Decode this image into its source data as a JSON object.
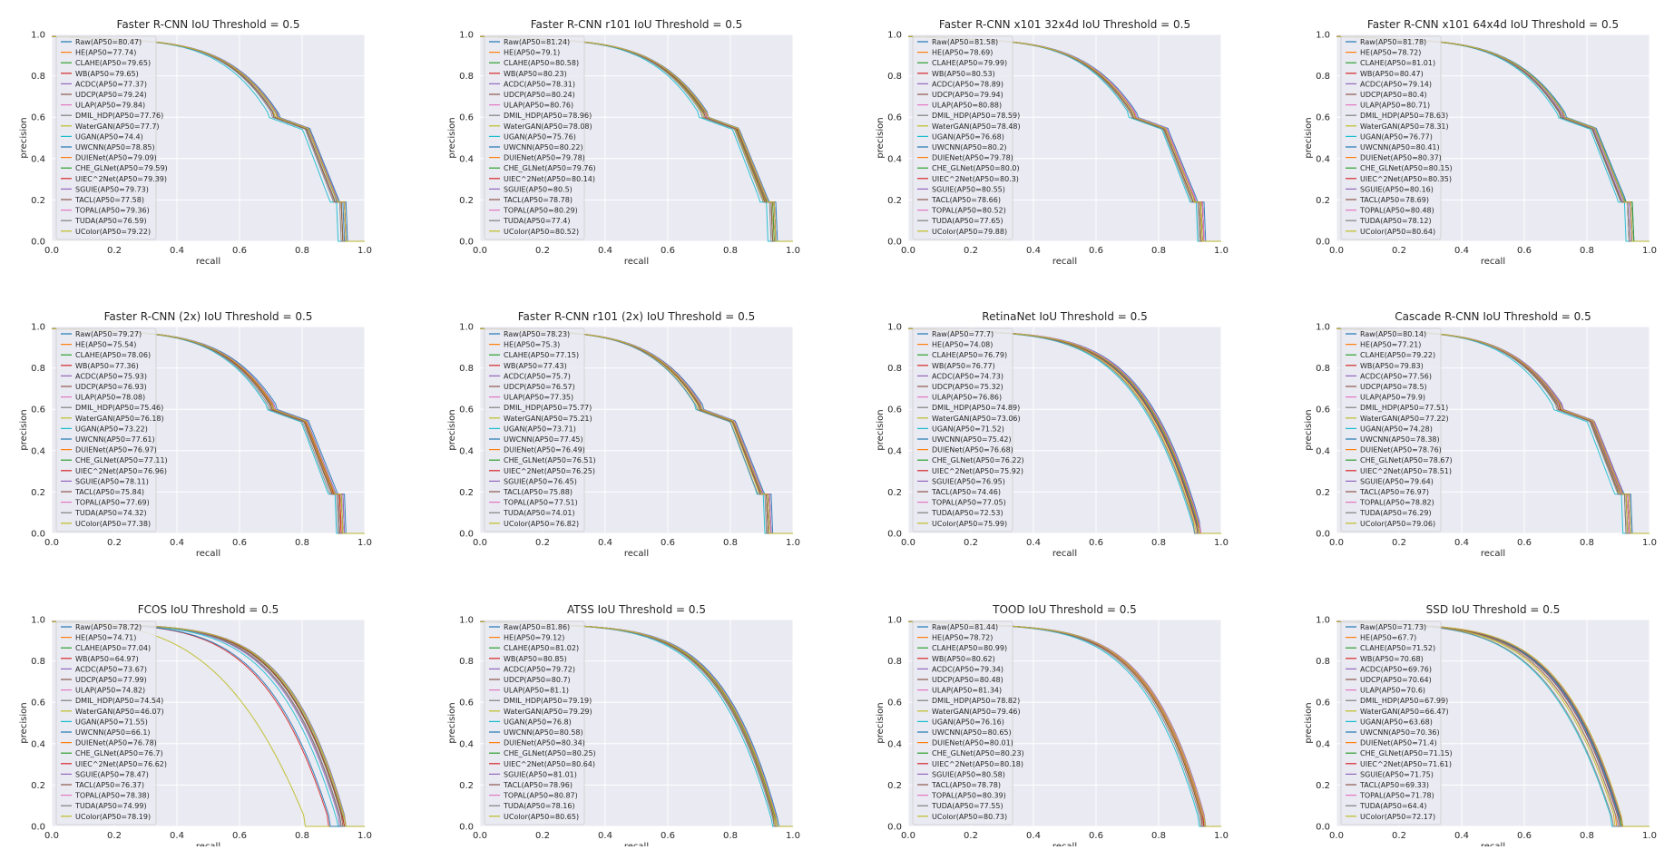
{
  "series_colors": [
    "#1f77b4",
    "#ff7f0e",
    "#2ca02c",
    "#d62728",
    "#9467bd",
    "#8c564b",
    "#e377c2",
    "#7f7f7f",
    "#bcbd22",
    "#17becf",
    "#1f77b4",
    "#ff7f0e",
    "#2ca02c",
    "#d62728",
    "#9467bd",
    "#8c564b",
    "#e377c2",
    "#7f7f7f",
    "#bcbd22"
  ],
  "chart_data": [
    {
      "type": "line",
      "title": "Faster R-CNN IoU Threshold = 0.5",
      "xlabel": "recall",
      "ylabel": "precision",
      "xlim": [
        0,
        1
      ],
      "ylim": [
        0,
        1
      ],
      "xticks": [
        "0.0",
        "0.2",
        "0.4",
        "0.6",
        "0.8",
        "1.0"
      ],
      "yticks": [
        "0.0",
        "0.2",
        "0.4",
        "0.6",
        "0.8",
        "1.0"
      ],
      "legend": [
        "Raw(AP50=80.47)",
        "HE(AP50=77.74)",
        "CLAHE(AP50=79.65)",
        "WB(AP50=79.65)",
        "ACDC(AP50=77.37)",
        "UDCP(AP50=79.24)",
        "ULAP(AP50=79.84)",
        "DMIL_HDP(AP50=77.76)",
        "WaterGAN(AP50=77.7)",
        "UGAN(AP50=74.4)",
        "UWCNN(AP50=78.85)",
        "DUIENet(AP50=79.09)",
        "CHE_GLNet(AP50=79.59)",
        "UIEC^2Net(AP50=79.39)",
        "SGUIE(AP50=79.73)",
        "TACL(AP50=77.58)",
        "TOPAL(AP50=79.36)",
        "TUDA(AP50=76.59)",
        "UColor(AP50=79.22)"
      ],
      "curve_shape": "step"
    },
    {
      "type": "line",
      "title": "Faster R-CNN r101 IoU Threshold = 0.5",
      "xlabel": "recall",
      "ylabel": "precision",
      "xlim": [
        0,
        1
      ],
      "ylim": [
        0,
        1
      ],
      "xticks": [
        "0.0",
        "0.2",
        "0.4",
        "0.6",
        "0.8",
        "1.0"
      ],
      "yticks": [
        "0.0",
        "0.2",
        "0.4",
        "0.6",
        "0.8",
        "1.0"
      ],
      "legend": [
        "Raw(AP50=81.24)",
        "HE(AP50=79.1)",
        "CLAHE(AP50=80.58)",
        "WB(AP50=80.23)",
        "ACDC(AP50=78.31)",
        "UDCP(AP50=80.24)",
        "ULAP(AP50=80.76)",
        "DMIL_HDP(AP50=78.96)",
        "WaterGAN(AP50=78.08)",
        "UGAN(AP50=75.76)",
        "UWCNN(AP50=80.22)",
        "DUIENet(AP50=79.78)",
        "CHE_GLNet(AP50=79.76)",
        "UIEC^2Net(AP50=80.14)",
        "SGUIE(AP50=80.5)",
        "TACL(AP50=78.78)",
        "TOPAL(AP50=80.29)",
        "TUDA(AP50=77.4)",
        "UColor(AP50=80.52)"
      ],
      "curve_shape": "step"
    },
    {
      "type": "line",
      "title": "Faster R-CNN x101 32x4d IoU Threshold = 0.5",
      "xlabel": "recall",
      "ylabel": "precision",
      "xlim": [
        0,
        1
      ],
      "ylim": [
        0,
        1
      ],
      "xticks": [
        "0.0",
        "0.2",
        "0.4",
        "0.6",
        "0.8",
        "1.0"
      ],
      "yticks": [
        "0.0",
        "0.2",
        "0.4",
        "0.6",
        "0.8",
        "1.0"
      ],
      "legend": [
        "Raw(AP50=81.58)",
        "HE(AP50=78.69)",
        "CLAHE(AP50=79.99)",
        "WB(AP50=80.53)",
        "ACDC(AP50=78.89)",
        "UDCP(AP50=79.94)",
        "ULAP(AP50=80.88)",
        "DMIL_HDP(AP50=78.59)",
        "WaterGAN(AP50=78.48)",
        "UGAN(AP50=76.68)",
        "UWCNN(AP50=80.2)",
        "DUIENet(AP50=79.78)",
        "CHE_GLNet(AP50=80.0)",
        "UIEC^2Net(AP50=80.3)",
        "SGUIE(AP50=80.55)",
        "TACL(AP50=78.66)",
        "TOPAL(AP50=80.52)",
        "TUDA(AP50=77.65)",
        "UColor(AP50=79.88)"
      ],
      "curve_shape": "step"
    },
    {
      "type": "line",
      "title": "Faster R-CNN x101 64x4d IoU Threshold = 0.5",
      "xlabel": "recall",
      "ylabel": "precision",
      "xlim": [
        0,
        1
      ],
      "ylim": [
        0,
        1
      ],
      "xticks": [
        "0.0",
        "0.2",
        "0.4",
        "0.6",
        "0.8",
        "1.0"
      ],
      "yticks": [
        "0.0",
        "0.2",
        "0.4",
        "0.6",
        "0.8",
        "1.0"
      ],
      "legend": [
        "Raw(AP50=81.78)",
        "HE(AP50=78.72)",
        "CLAHE(AP50=81.01)",
        "WB(AP50=80.47)",
        "ACDC(AP50=79.14)",
        "UDCP(AP50=80.4)",
        "ULAP(AP50=80.71)",
        "DMIL_HDP(AP50=78.63)",
        "WaterGAN(AP50=78.31)",
        "UGAN(AP50=76.77)",
        "UWCNN(AP50=80.41)",
        "DUIENet(AP50=80.37)",
        "CHE_GLNet(AP50=80.15)",
        "UIEC^2Net(AP50=80.35)",
        "SGUIE(AP50=80.16)",
        "TACL(AP50=78.69)",
        "TOPAL(AP50=80.48)",
        "TUDA(AP50=78.12)",
        "UColor(AP50=80.64)"
      ],
      "curve_shape": "step"
    },
    {
      "type": "line",
      "title": "Faster R-CNN (2x) IoU Threshold = 0.5",
      "xlabel": "recall",
      "ylabel": "precision",
      "xlim": [
        0,
        1
      ],
      "ylim": [
        0,
        1
      ],
      "xticks": [
        "0.0",
        "0.2",
        "0.4",
        "0.6",
        "0.8",
        "1.0"
      ],
      "yticks": [
        "0.0",
        "0.2",
        "0.4",
        "0.6",
        "0.8",
        "1.0"
      ],
      "legend": [
        "Raw(AP50=79.27)",
        "HE(AP50=75.54)",
        "CLAHE(AP50=78.06)",
        "WB(AP50=77.36)",
        "ACDC(AP50=75.93)",
        "UDCP(AP50=76.93)",
        "ULAP(AP50=78.08)",
        "DMIL_HDP(AP50=75.46)",
        "WaterGAN(AP50=76.18)",
        "UGAN(AP50=73.22)",
        "UWCNN(AP50=77.61)",
        "DUIENet(AP50=76.97)",
        "CHE_GLNet(AP50=77.11)",
        "UIEC^2Net(AP50=76.96)",
        "SGUIE(AP50=78.11)",
        "TACL(AP50=75.84)",
        "TOPAL(AP50=77.69)",
        "TUDA(AP50=74.32)",
        "UColor(AP50=77.38)"
      ],
      "curve_shape": "step"
    },
    {
      "type": "line",
      "title": "Faster R-CNN r101 (2x) IoU Threshold = 0.5",
      "xlabel": "recall",
      "ylabel": "precision",
      "xlim": [
        0,
        1
      ],
      "ylim": [
        0,
        1
      ],
      "xticks": [
        "0.0",
        "0.2",
        "0.4",
        "0.6",
        "0.8",
        "1.0"
      ],
      "yticks": [
        "0.0",
        "0.2",
        "0.4",
        "0.6",
        "0.8",
        "1.0"
      ],
      "legend": [
        "Raw(AP50=78.23)",
        "HE(AP50=75.3)",
        "CLAHE(AP50=77.15)",
        "WB(AP50=77.43)",
        "ACDC(AP50=75.7)",
        "UDCP(AP50=76.57)",
        "ULAP(AP50=77.35)",
        "DMIL_HDP(AP50=75.77)",
        "WaterGAN(AP50=75.21)",
        "UGAN(AP50=73.71)",
        "UWCNN(AP50=77.45)",
        "DUIENet(AP50=76.49)",
        "CHE_GLNet(AP50=76.51)",
        "UIEC^2Net(AP50=76.25)",
        "SGUIE(AP50=76.45)",
        "TACL(AP50=75.88)",
        "TOPAL(AP50=77.51)",
        "TUDA(AP50=74.01)",
        "UColor(AP50=76.82)"
      ],
      "curve_shape": "step"
    },
    {
      "type": "line",
      "title": "RetinaNet IoU Threshold = 0.5",
      "xlabel": "recall",
      "ylabel": "precision",
      "xlim": [
        0,
        1
      ],
      "ylim": [
        0,
        1
      ],
      "xticks": [
        "0.0",
        "0.2",
        "0.4",
        "0.6",
        "0.8",
        "1.0"
      ],
      "yticks": [
        "0.0",
        "0.2",
        "0.4",
        "0.6",
        "0.8",
        "1.0"
      ],
      "legend": [
        "Raw(AP50=77.7)",
        "HE(AP50=74.08)",
        "CLAHE(AP50=76.79)",
        "WB(AP50=76.77)",
        "ACDC(AP50=74.73)",
        "UDCP(AP50=75.32)",
        "ULAP(AP50=76.86)",
        "DMIL_HDP(AP50=74.89)",
        "WaterGAN(AP50=73.06)",
        "UGAN(AP50=71.52)",
        "UWCNN(AP50=75.42)",
        "DUIENet(AP50=76.68)",
        "CHE_GLNet(AP50=76.22)",
        "UIEC^2Net(AP50=75.92)",
        "SGUIE(AP50=76.95)",
        "TACL(AP50=74.46)",
        "TOPAL(AP50=77.05)",
        "TUDA(AP50=72.53)",
        "UColor(AP50=75.99)"
      ],
      "curve_shape": "smooth"
    },
    {
      "type": "line",
      "title": "Cascade R-CNN IoU Threshold = 0.5",
      "xlabel": "recall",
      "ylabel": "precision",
      "xlim": [
        0,
        1
      ],
      "ylim": [
        0,
        1
      ],
      "xticks": [
        "0.0",
        "0.2",
        "0.4",
        "0.6",
        "0.8",
        "1.0"
      ],
      "yticks": [
        "0.0",
        "0.2",
        "0.4",
        "0.6",
        "0.8",
        "1.0"
      ],
      "legend": [
        "Raw(AP50=80.14)",
        "HE(AP50=77.21)",
        "CLAHE(AP50=79.22)",
        "WB(AP50=79.83)",
        "ACDC(AP50=77.56)",
        "UDCP(AP50=78.5)",
        "ULAP(AP50=79.9)",
        "DMIL_HDP(AP50=77.51)",
        "WaterGAN(AP50=77.22)",
        "UGAN(AP50=74.28)",
        "UWCNN(AP50=78.38)",
        "DUIENet(AP50=78.76)",
        "CHE_GLNet(AP50=78.67)",
        "UIEC^2Net(AP50=78.51)",
        "SGUIE(AP50=79.64)",
        "TACL(AP50=76.97)",
        "TOPAL(AP50=78.82)",
        "TUDA(AP50=76.29)",
        "UColor(AP50=79.06)"
      ],
      "curve_shape": "step"
    },
    {
      "type": "line",
      "title": "FCOS IoU Threshold = 0.5",
      "xlabel": "recall",
      "ylabel": "precision",
      "xlim": [
        0,
        1
      ],
      "ylim": [
        0,
        1
      ],
      "xticks": [
        "0.0",
        "0.2",
        "0.4",
        "0.6",
        "0.8",
        "1.0"
      ],
      "yticks": [
        "0.0",
        "0.2",
        "0.4",
        "0.6",
        "0.8",
        "1.0"
      ],
      "legend": [
        "Raw(AP50=78.72)",
        "HE(AP50=74.71)",
        "CLAHE(AP50=77.04)",
        "WB(AP50=64.97)",
        "ACDC(AP50=73.67)",
        "UDCP(AP50=77.99)",
        "ULAP(AP50=74.82)",
        "DMIL_HDP(AP50=74.54)",
        "WaterGAN(AP50=46.07)",
        "UGAN(AP50=71.55)",
        "UWCNN(AP50=66.1)",
        "DUIENet(AP50=76.78)",
        "CHE_GLNet(AP50=76.7)",
        "UIEC^2Net(AP50=76.62)",
        "SGUIE(AP50=78.47)",
        "TACL(AP50=76.37)",
        "TOPAL(AP50=78.38)",
        "TUDA(AP50=74.99)",
        "UColor(AP50=78.19)"
      ],
      "curve_shape": "smooth"
    },
    {
      "type": "line",
      "title": "ATSS IoU Threshold = 0.5",
      "xlabel": "recall",
      "ylabel": "precision",
      "xlim": [
        0,
        1
      ],
      "ylim": [
        0,
        1
      ],
      "xticks": [
        "0.0",
        "0.2",
        "0.4",
        "0.6",
        "0.8",
        "1.0"
      ],
      "yticks": [
        "0.0",
        "0.2",
        "0.4",
        "0.6",
        "0.8",
        "1.0"
      ],
      "legend": [
        "Raw(AP50=81.86)",
        "HE(AP50=79.12)",
        "CLAHE(AP50=81.02)",
        "WB(AP50=80.85)",
        "ACDC(AP50=79.72)",
        "UDCP(AP50=80.7)",
        "ULAP(AP50=81.1)",
        "DMIL_HDP(AP50=79.19)",
        "WaterGAN(AP50=79.29)",
        "UGAN(AP50=76.8)",
        "UWCNN(AP50=80.58)",
        "DUIENet(AP50=80.34)",
        "CHE_GLNet(AP50=80.25)",
        "UIEC^2Net(AP50=80.64)",
        "SGUIE(AP50=81.01)",
        "TACL(AP50=78.96)",
        "TOPAL(AP50=80.87)",
        "TUDA(AP50=78.16)",
        "UColor(AP50=80.65)"
      ],
      "curve_shape": "smooth"
    },
    {
      "type": "line",
      "title": "TOOD IoU Threshold = 0.5",
      "xlabel": "recall",
      "ylabel": "precision",
      "xlim": [
        0,
        1
      ],
      "ylim": [
        0,
        1
      ],
      "xticks": [
        "0.0",
        "0.2",
        "0.4",
        "0.6",
        "0.8",
        "1.0"
      ],
      "yticks": [
        "0.0",
        "0.2",
        "0.4",
        "0.6",
        "0.8",
        "1.0"
      ],
      "legend": [
        "Raw(AP50=81.44)",
        "HE(AP50=78.72)",
        "CLAHE(AP50=80.99)",
        "WB(AP50=80.62)",
        "ACDC(AP50=79.34)",
        "UDCP(AP50=80.48)",
        "ULAP(AP50=81.34)",
        "DMIL_HDP(AP50=78.82)",
        "WaterGAN(AP50=79.46)",
        "UGAN(AP50=76.16)",
        "UWCNN(AP50=80.65)",
        "DUIENet(AP50=80.01)",
        "CHE_GLNet(AP50=80.23)",
        "UIEC^2Net(AP50=80.18)",
        "SGUIE(AP50=80.58)",
        "TACL(AP50=78.78)",
        "TOPAL(AP50=80.39)",
        "TUDA(AP50=77.55)",
        "UColor(AP50=80.73)"
      ],
      "curve_shape": "smooth"
    },
    {
      "type": "line",
      "title": "SSD IoU Threshold = 0.5",
      "xlabel": "recall",
      "ylabel": "precision",
      "xlim": [
        0,
        1
      ],
      "ylim": [
        0,
        1
      ],
      "xticks": [
        "0.0",
        "0.2",
        "0.4",
        "0.6",
        "0.8",
        "1.0"
      ],
      "yticks": [
        "0.0",
        "0.2",
        "0.4",
        "0.6",
        "0.8",
        "1.0"
      ],
      "legend": [
        "Raw(AP50=71.73)",
        "HE(AP50=67.7)",
        "CLAHE(AP50=71.52)",
        "WB(AP50=70.68)",
        "ACDC(AP50=69.76)",
        "UDCP(AP50=70.64)",
        "ULAP(AP50=70.6)",
        "DMIL_HDP(AP50=67.99)",
        "WaterGAN(AP50=66.47)",
        "UGAN(AP50=63.68)",
        "UWCNN(AP50=70.36)",
        "DUIENet(AP50=71.4)",
        "CHE_GLNet(AP50=71.15)",
        "UIEC^2Net(AP50=71.61)",
        "SGUIE(AP50=71.75)",
        "TACL(AP50=69.33)",
        "TOPAL(AP50=71.78)",
        "TUDA(AP50=64.4)",
        "UColor(AP50=72.17)"
      ],
      "curve_shape": "smooth"
    }
  ]
}
